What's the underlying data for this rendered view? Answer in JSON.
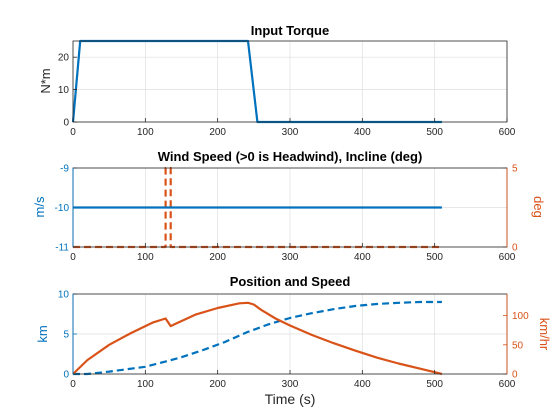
{
  "colors": {
    "blue": "#0072BD",
    "orange": "#D95319",
    "axis": "#262626",
    "grid": "#dfdfdf"
  },
  "chart_data": [
    {
      "type": "line",
      "title": "Input Torque",
      "xlabel": "",
      "ylabel": "N*m",
      "xlim": [
        0,
        600
      ],
      "ylim": [
        0,
        25
      ],
      "xticks": [
        0,
        100,
        200,
        300,
        400,
        500,
        600
      ],
      "yticks": [
        0,
        10,
        20
      ],
      "grid": true,
      "series": [
        {
          "axis": "left",
          "color": "#0072BD",
          "dash": "solid",
          "points": [
            [
              0,
              0
            ],
            [
              10,
              25
            ],
            [
              242,
              25
            ],
            [
              255,
              0
            ],
            [
              510,
              0
            ]
          ]
        }
      ]
    },
    {
      "type": "line",
      "title": "Wind Speed (>0 is Headwind), Incline (deg)",
      "xlabel": "",
      "ylabel": "m/s",
      "ylabel_right": "deg",
      "xlim": [
        0,
        600
      ],
      "ylim": [
        -11,
        -9
      ],
      "ylim_right": [
        0,
        5
      ],
      "xticks": [
        0,
        100,
        200,
        300,
        400,
        500,
        600
      ],
      "yticks": [
        -11,
        -10,
        -9
      ],
      "yticks_right": [
        0,
        5
      ],
      "grid": true,
      "series": [
        {
          "axis": "right",
          "color": "#D95319",
          "dash": "dashed",
          "points": [
            [
              0,
              0
            ],
            [
              128,
              0
            ],
            [
              128,
              5
            ],
            [
              135,
              5
            ],
            [
              135,
              0
            ],
            [
              510,
              0
            ]
          ]
        },
        {
          "axis": "left",
          "color": "#0072BD",
          "dash": "solid",
          "points": [
            [
              0,
              -10
            ],
            [
              510,
              -10
            ]
          ]
        }
      ]
    },
    {
      "type": "line",
      "title": "Position and Speed",
      "xlabel": "Time (s)",
      "ylabel": "km",
      "ylabel_right": "km/hr",
      "xlim": [
        0,
        600
      ],
      "ylim": [
        0,
        10
      ],
      "ylim_right": [
        0,
        137
      ],
      "xticks": [
        0,
        100,
        200,
        300,
        400,
        500,
        600
      ],
      "yticks": [
        0,
        5,
        10
      ],
      "yticks_right": [
        0,
        50,
        100
      ],
      "grid": true,
      "series": [
        {
          "axis": "left",
          "color": "#0072BD",
          "dash": "dashed",
          "points": [
            [
              0,
              0
            ],
            [
              20,
              0
            ],
            [
              50,
              0.3
            ],
            [
              100,
              0.9
            ],
            [
              130,
              1.6
            ],
            [
              150,
              2.1
            ],
            [
              180,
              3.0
            ],
            [
              210,
              4.0
            ],
            [
              240,
              5.2
            ],
            [
              270,
              6.2
            ],
            [
              300,
              7.0
            ],
            [
              330,
              7.6
            ],
            [
              360,
              8.1
            ],
            [
              390,
              8.5
            ],
            [
              420,
              8.75
            ],
            [
              450,
              8.9
            ],
            [
              480,
              9.0
            ],
            [
              510,
              9.0
            ]
          ]
        },
        {
          "axis": "right",
          "color": "#D95319",
          "dash": "solid",
          "points": [
            [
              0,
              0
            ],
            [
              20,
              24
            ],
            [
              50,
              50
            ],
            [
              80,
              70
            ],
            [
              110,
              88
            ],
            [
              128,
              95
            ],
            [
              135,
              82
            ],
            [
              140,
              85
            ],
            [
              170,
              102
            ],
            [
              200,
              113
            ],
            [
              230,
              121
            ],
            [
              242,
              122
            ],
            [
              250,
              119
            ],
            [
              260,
              110
            ],
            [
              280,
              95
            ],
            [
              300,
              83
            ],
            [
              330,
              67
            ],
            [
              360,
              53
            ],
            [
              390,
              40
            ],
            [
              420,
              28
            ],
            [
              450,
              18
            ],
            [
              480,
              9
            ],
            [
              500,
              3
            ],
            [
              510,
              0
            ]
          ]
        }
      ]
    }
  ]
}
